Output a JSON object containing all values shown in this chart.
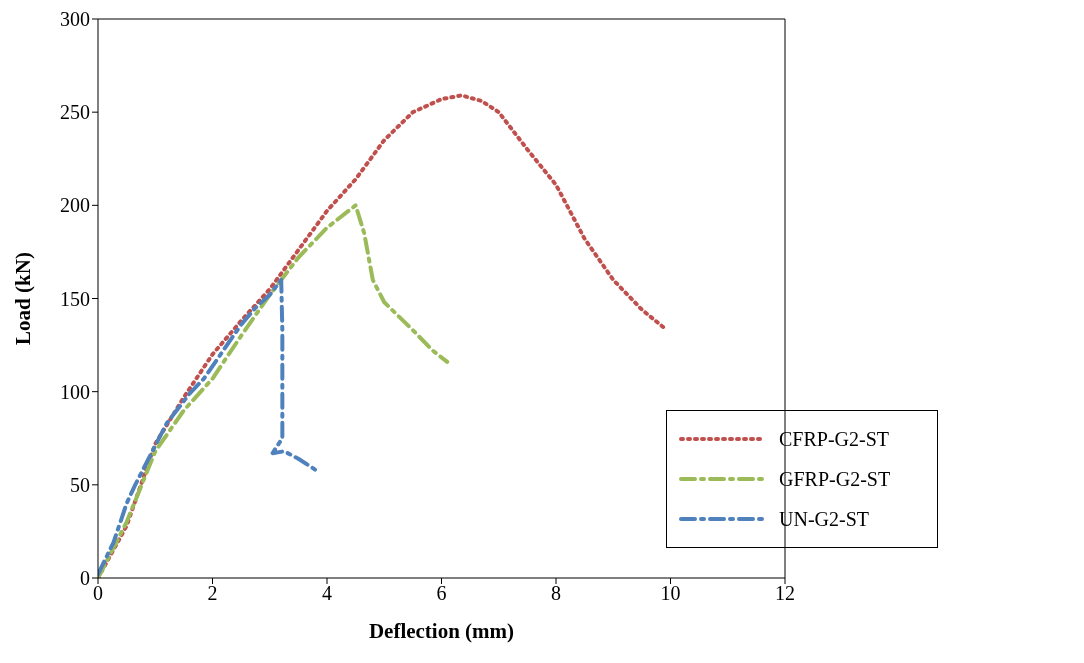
{
  "chart_data": {
    "type": "line",
    "xlabel": "Deflection (mm)",
    "ylabel": "Load (kN)",
    "xlim": [
      0,
      12
    ],
    "xticks": [
      0,
      2,
      4,
      6,
      8,
      10,
      12
    ],
    "ylim": [
      0,
      300
    ],
    "yticks": [
      0,
      50,
      100,
      150,
      200,
      250,
      300
    ],
    "legend": "bottom right",
    "marker": "none",
    "series": [
      {
        "name": "CFRP-G2-ST",
        "color": "#c0504d",
        "line_style": "dotted",
        "x": [
          0,
          0.5,
          1,
          1.5,
          2,
          2.5,
          3,
          3.5,
          4,
          4.5,
          5,
          5.5,
          6,
          6.35,
          6.7,
          7,
          7.25,
          7.5,
          8,
          8.5,
          9,
          9.5,
          9.9
        ],
        "values": [
          0,
          28,
          72,
          97,
          120,
          138,
          155,
          176,
          197,
          214,
          235,
          250,
          257,
          259,
          256,
          250,
          240,
          230,
          211,
          182,
          160,
          144,
          134
        ]
      },
      {
        "name": "GFRP-G2-ST",
        "color": "#9bbb59",
        "line_style": "dashed",
        "x": [
          0,
          0.5,
          1,
          1.5,
          2,
          2.5,
          3,
          3.5,
          4,
          4.5,
          4.65,
          4.8,
          5,
          5.5,
          5.85,
          6.1
        ],
        "values": [
          0,
          30,
          68,
          90,
          107,
          130,
          152,
          172,
          188,
          200,
          185,
          160,
          148,
          133,
          122,
          116
        ]
      },
      {
        "name": "UN-G2-ST",
        "color": "#4f81bd",
        "line_style": "dashed",
        "x": [
          0,
          0.27,
          0.5,
          0.65,
          1.2,
          1.4,
          1.6,
          1.85,
          2.5,
          2.75,
          3.0,
          3.2,
          3.22,
          3.22,
          3.22,
          3.22,
          3.22,
          3.05,
          3.25,
          3.5,
          3.8
        ],
        "values": [
          2,
          19,
          40,
          50,
          83,
          91,
          99,
          107,
          136,
          145,
          152,
          160,
          133,
          120,
          108,
          88,
          75,
          67,
          68,
          64,
          58
        ]
      }
    ]
  }
}
